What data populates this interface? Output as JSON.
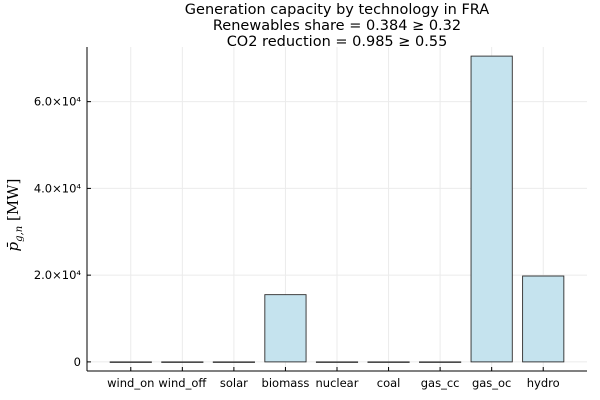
{
  "chart_data": {
    "type": "bar",
    "title_lines": [
      "Generation capacity by technology in FRA",
      "Renewables share = 0.384 ≥ 0.32",
      "CO2 reduction = 0.985 ≥ 0.55"
    ],
    "ylabel": "p̄g,n [MW]",
    "xlabel": "",
    "categories": [
      "wind_on",
      "wind_off",
      "solar",
      "biomass",
      "nuclear",
      "coal",
      "gas_cc",
      "gas_oc",
      "hydro"
    ],
    "values": [
      0,
      0,
      0,
      15500,
      0,
      0,
      0,
      70500,
      19800
    ],
    "yticks": [
      0,
      20000,
      40000,
      60000
    ],
    "ytick_labels": [
      "0",
      "2.0×10⁴",
      "4.0×10⁴",
      "6.0×10⁴"
    ],
    "ylim": [
      -2100,
      72600
    ],
    "grid": true,
    "legend": "none",
    "colors": {
      "bar_fill": "#c5e3ee",
      "bar_stroke": "#2b2b2b",
      "axis": "#000000",
      "grid": "#ebebeb"
    }
  }
}
